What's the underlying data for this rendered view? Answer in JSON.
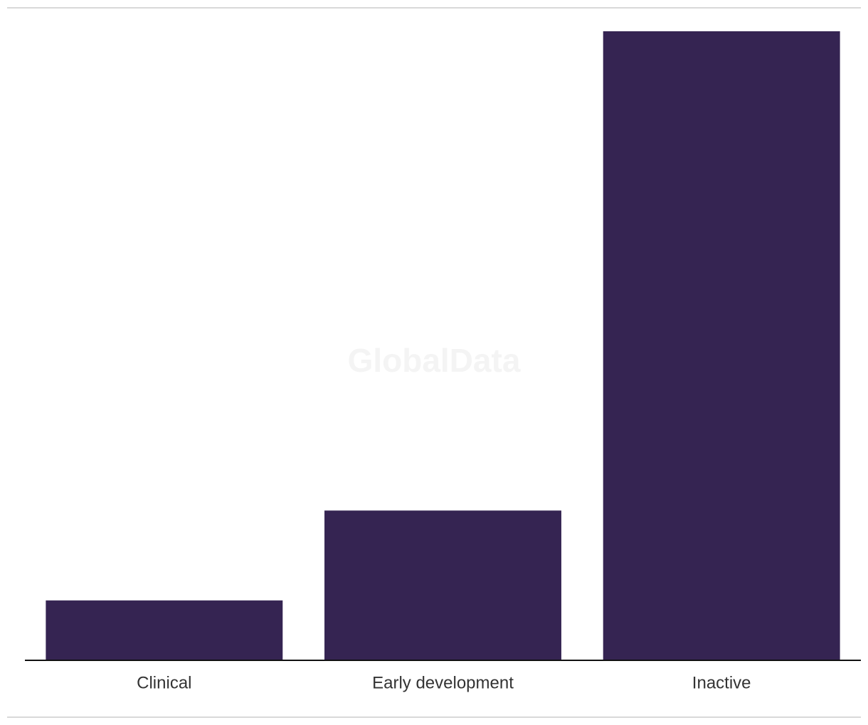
{
  "chart_data": {
    "type": "bar",
    "watermark": "GlobalData",
    "categories": [
      "Clinical",
      "Early development",
      "Inactive"
    ],
    "values": [
      2,
      5,
      21
    ],
    "color": "#352452",
    "ylim": [
      0,
      21
    ]
  }
}
